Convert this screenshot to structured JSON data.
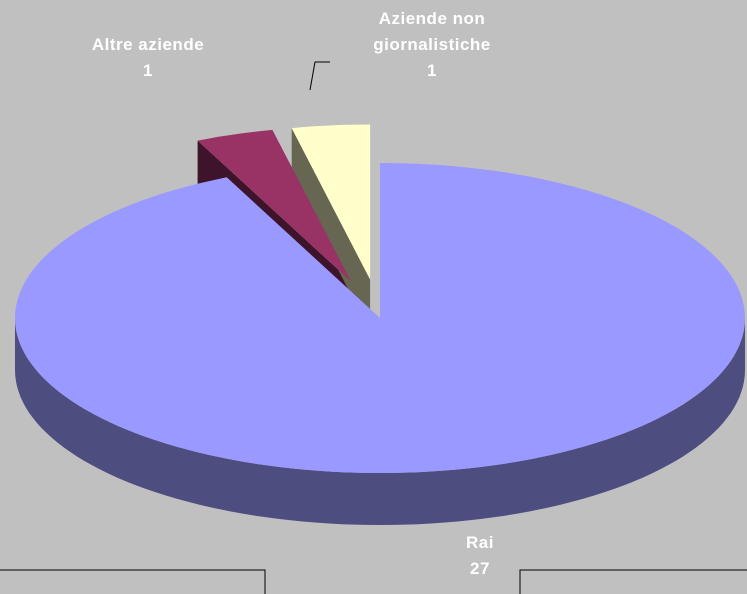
{
  "chart_data": {
    "type": "pie",
    "categories": [
      "Rai",
      "Altre aziende",
      "Aziende non giornalistiche"
    ],
    "values": [
      27,
      1,
      1
    ],
    "colors": [
      "#9999ff",
      "#993366",
      "#ffffcc"
    ]
  }
}
